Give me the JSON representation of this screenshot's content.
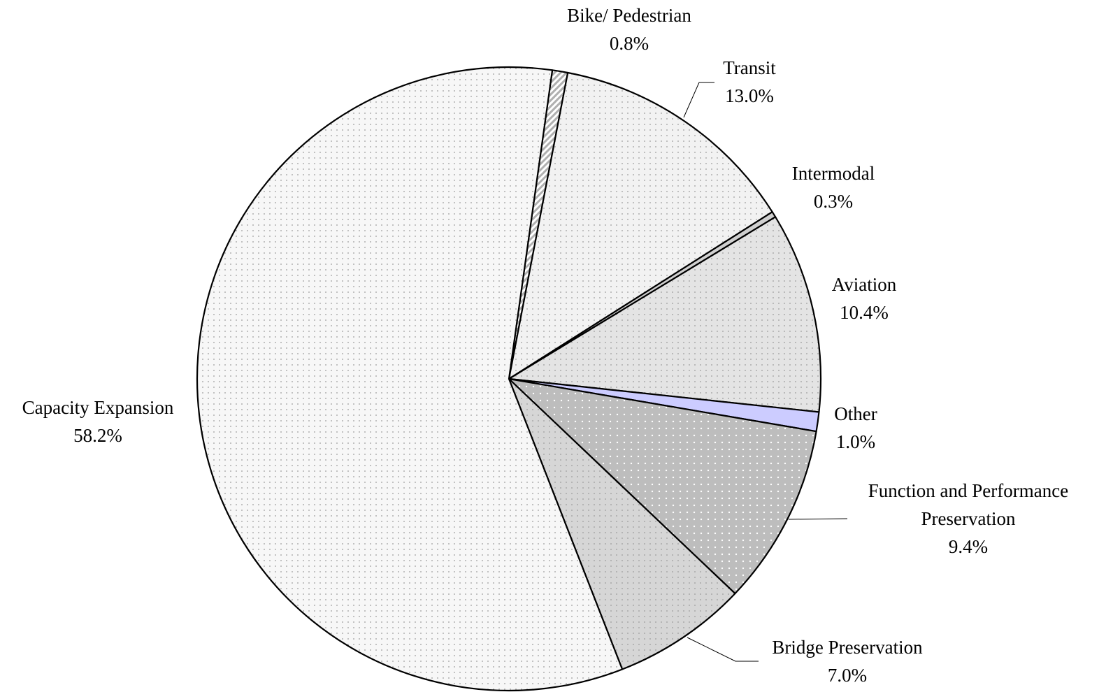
{
  "chart_data": {
    "type": "pie",
    "categories": [
      "Bike/ Pedestrian",
      "Transit",
      "Intermodal",
      "Aviation",
      "Other",
      "Function and Performance Preservation",
      "Bridge Preservation",
      "Capacity Expansion"
    ],
    "values": [
      0.8,
      13.0,
      0.3,
      10.4,
      1.0,
      9.4,
      7.0,
      58.2
    ],
    "value_labels": [
      "0.8%",
      "13.0%",
      "0.3%",
      "10.4%",
      "1.0%",
      "9.4%",
      "7.0%",
      "58.2%"
    ],
    "colors": [
      "#b0b0b0",
      "#f2f2f2",
      "#d0d0d0",
      "#e4e4e4",
      "#ccccff",
      "#bdbdbd",
      "#d6d6d6",
      "#f7f7f7"
    ]
  }
}
